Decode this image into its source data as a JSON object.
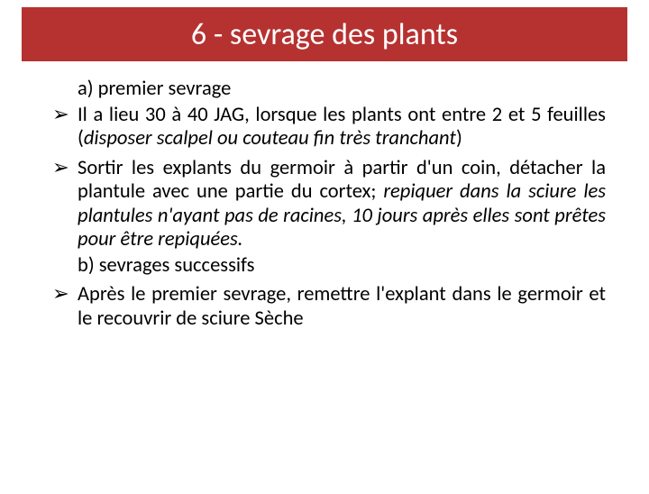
{
  "title": "6 - sevrage des plants",
  "section_a": "a) premier sevrage",
  "bullet1_pre": "Il a lieu 30 à 40 JAG, lorsque les plants ont entre 2 et 5 feuilles (",
  "bullet1_italic": "disposer scalpel ou couteau fin très tranchant",
  "bullet1_post": ")",
  "bullet2_line1": "Sortir les explants du germoir à partir d'un coin, détacher la plantule avec une partie du cortex",
  "bullet2_line2": "; ",
  "bullet2_italic": "repiquer dans la sciure les plantules n'ayant pas de racines, 10 jours après elles sont prêtes pour être repiquées.",
  "section_b": "b) sevrages successifs",
  "bullet3": "Après le premier sevrage, remettre l'explant dans le germoir et le recouvrir de sciure Sèche",
  "arrow": "➢",
  "colors": {
    "title_bg": "#b53231",
    "title_fg": "#ffffff",
    "body_fg": "#000000",
    "page_bg": "#ffffff"
  }
}
